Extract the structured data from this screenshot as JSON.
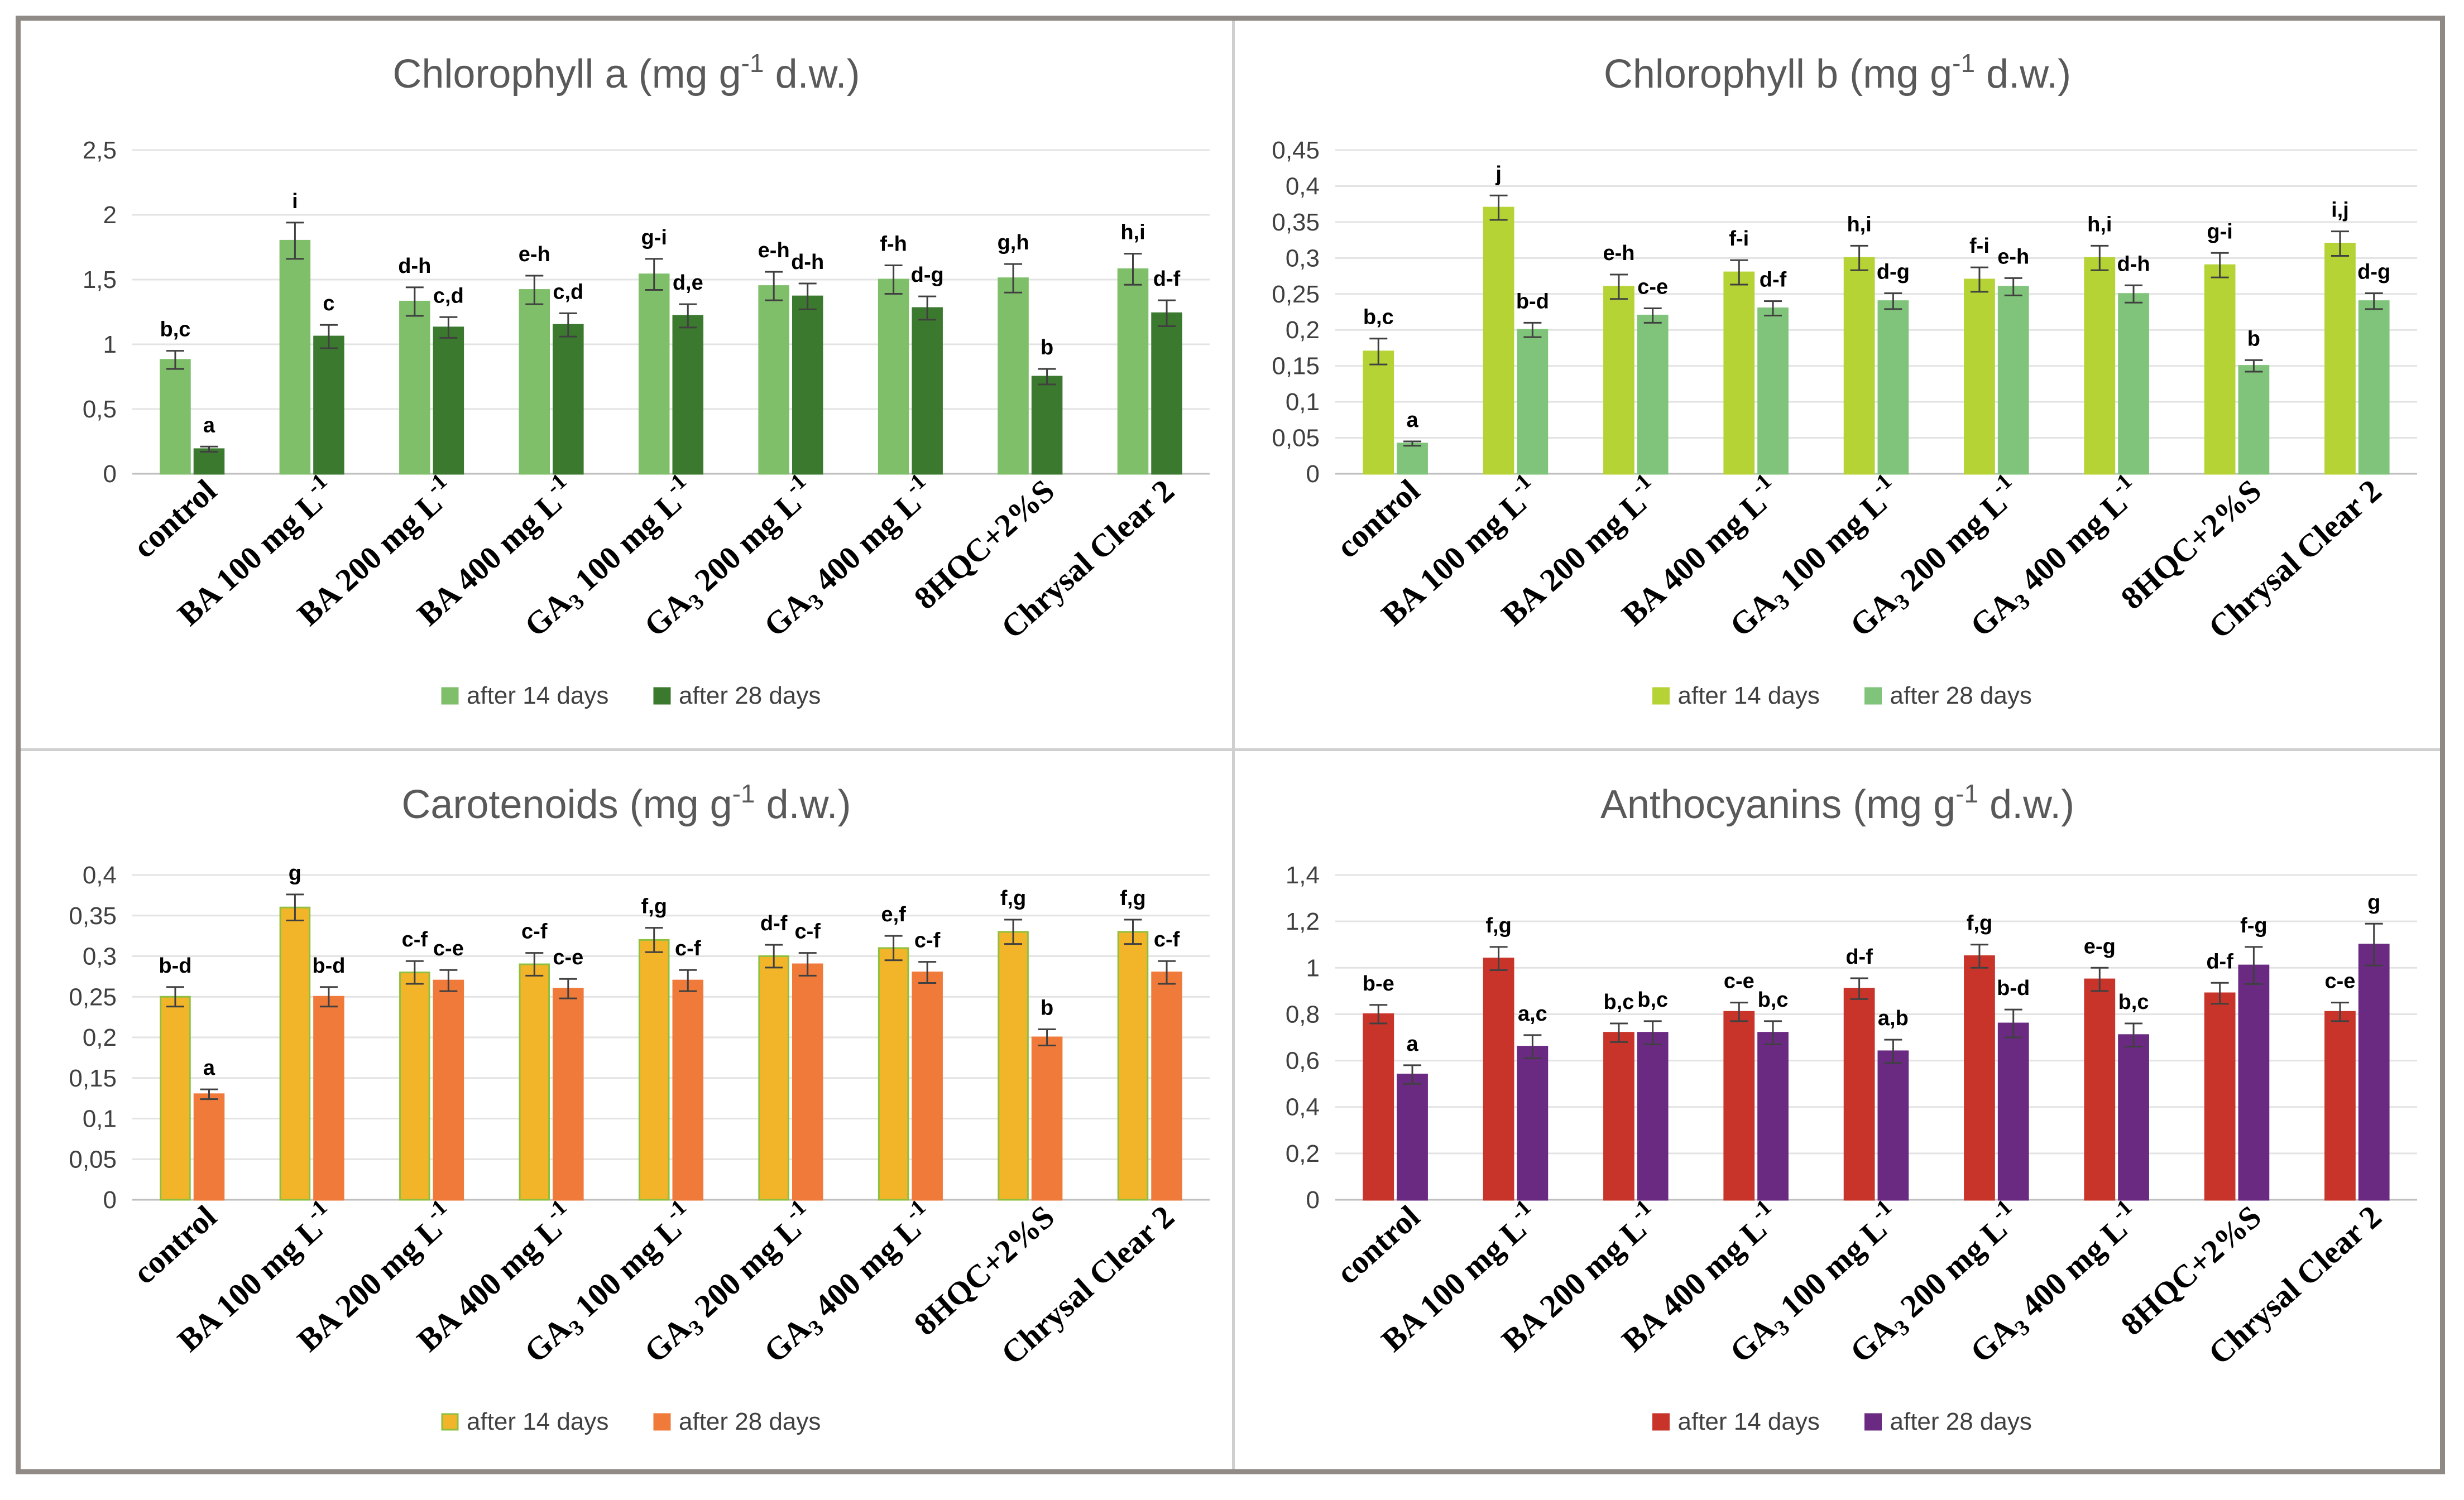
{
  "chart_data": [
    {
      "type": "bar",
      "title_main": "Chlorophyll a (mg g",
      "title_sup": "-1",
      "title_end": " d.w.)",
      "ylim": [
        0,
        2.5
      ],
      "ytick_labels": [
        "0",
        "0,5",
        "1",
        "1,5",
        "2",
        "2,5"
      ],
      "categories": [
        {
          "main": "control",
          "sub": "",
          "sup": "",
          "rest": ""
        },
        {
          "main": "BA 100 mg L",
          "sub": "",
          "sup": "-1",
          "rest": ""
        },
        {
          "main": "BA 200 mg L",
          "sub": "",
          "sup": "-1",
          "rest": ""
        },
        {
          "main": "BA 400 mg L",
          "sub": "",
          "sup": "-1",
          "rest": ""
        },
        {
          "main": "GA",
          "sub": "3",
          "sup": "",
          "rest": " 100 mg L",
          "sup2": "-1"
        },
        {
          "main": "GA",
          "sub": "3",
          "sup": "",
          "rest": " 200 mg L",
          "sup2": "-1"
        },
        {
          "main": "GA",
          "sub": "3",
          "sup": "",
          "rest": " 400 mg L",
          "sup2": "-1"
        },
        {
          "main": "8HQC+2%S",
          "sub": "",
          "sup": "",
          "rest": ""
        },
        {
          "main": "Chrysal Clear 2",
          "sub": "",
          "sup": "",
          "rest": ""
        }
      ],
      "series": [
        {
          "name": "after 14 days",
          "color": "#7fbf6a",
          "edge": "#7fbf6a",
          "values": [
            0.88,
            1.8,
            1.33,
            1.42,
            1.54,
            1.45,
            1.5,
            1.51,
            1.58
          ],
          "errors": [
            0.07,
            0.14,
            0.11,
            0.11,
            0.12,
            0.11,
            0.11,
            0.11,
            0.12
          ],
          "labels": [
            "b,c",
            "i",
            "d-h",
            "e-h",
            "g-i",
            "e-h",
            "f-h",
            "g,h",
            "h,i"
          ]
        },
        {
          "name": "after 28 days",
          "color": "#3b7a2e",
          "edge": "#3b7a2e",
          "values": [
            0.19,
            1.06,
            1.13,
            1.15,
            1.22,
            1.37,
            1.28,
            0.75,
            1.24
          ],
          "errors": [
            0.02,
            0.09,
            0.08,
            0.09,
            0.09,
            0.1,
            0.09,
            0.06,
            0.1
          ],
          "labels": [
            "a",
            "c",
            "c,d",
            "c,d",
            "d,e",
            "d-h",
            "d-g",
            "b",
            "d-f"
          ]
        }
      ]
    },
    {
      "type": "bar",
      "title_main": "Chlorophyll b (mg g",
      "title_sup": "-1",
      "title_end": " d.w.)",
      "ylim": [
        0,
        0.45
      ],
      "ytick_labels": [
        "0",
        "0,05",
        "0,1",
        "0,15",
        "0,2",
        "0,25",
        "0,3",
        "0,35",
        "0,4",
        "0,45"
      ],
      "categories": [
        {
          "main": "control",
          "sub": "",
          "sup": "",
          "rest": ""
        },
        {
          "main": "BA 100 mg L",
          "sub": "",
          "sup": "-1",
          "rest": ""
        },
        {
          "main": "BA 200 mg L",
          "sub": "",
          "sup": "-1",
          "rest": ""
        },
        {
          "main": "BA 400 mg L",
          "sub": "",
          "sup": "-1",
          "rest": ""
        },
        {
          "main": "GA",
          "sub": "3",
          "sup": "",
          "rest": " 100 mg L",
          "sup2": "-1"
        },
        {
          "main": "GA",
          "sub": "3",
          "sup": "",
          "rest": " 200 mg L",
          "sup2": "-1"
        },
        {
          "main": "GA",
          "sub": "3",
          "sup": "",
          "rest": " 400 mg L",
          "sup2": "-1"
        },
        {
          "main": "8HQC+2%S",
          "sub": "",
          "sup": "",
          "rest": ""
        },
        {
          "main": "Chrysal Clear 2",
          "sub": "",
          "sup": "",
          "rest": ""
        }
      ],
      "series": [
        {
          "name": "after 14 days",
          "color": "#b5d334",
          "edge": "#b5d334",
          "values": [
            0.17,
            0.37,
            0.26,
            0.28,
            0.3,
            0.27,
            0.3,
            0.29,
            0.32
          ],
          "errors": [
            0.018,
            0.017,
            0.017,
            0.017,
            0.017,
            0.017,
            0.017,
            0.017,
            0.017
          ],
          "labels": [
            "b,c",
            "j",
            "e-h",
            "f-i",
            "h,i",
            "f-i",
            "h,i",
            "g-i",
            "i,j"
          ]
        },
        {
          "name": "after 28 days",
          "color": "#7fc47a",
          "edge": "#7fc47a",
          "values": [
            0.042,
            0.2,
            0.22,
            0.23,
            0.24,
            0.26,
            0.25,
            0.15,
            0.24
          ],
          "errors": [
            0.003,
            0.01,
            0.01,
            0.01,
            0.011,
            0.012,
            0.012,
            0.008,
            0.011
          ],
          "labels": [
            "a",
            "b-d",
            "c-e",
            "d-f",
            "d-g",
            "e-h",
            "d-h",
            "b",
            "d-g"
          ]
        }
      ]
    },
    {
      "type": "bar",
      "title_main": "Carotenoids  (mg g",
      "title_sup": "-1",
      "title_end": " d.w.)",
      "ylim": [
        0,
        0.4
      ],
      "ytick_labels": [
        "0",
        "0,05",
        "0,1",
        "0,15",
        "0,2",
        "0,25",
        "0,3",
        "0,35",
        "0,4"
      ],
      "categories": [
        {
          "main": "control",
          "sub": "",
          "sup": "",
          "rest": ""
        },
        {
          "main": "BA 100 mg L",
          "sub": "",
          "sup": "-1",
          "rest": ""
        },
        {
          "main": "BA 200 mg L",
          "sub": "",
          "sup": "-1",
          "rest": ""
        },
        {
          "main": "BA 400 mg L",
          "sub": "",
          "sup": "-1",
          "rest": ""
        },
        {
          "main": "GA",
          "sub": "3",
          "sup": "",
          "rest": " 100 mg L",
          "sup2": "-1"
        },
        {
          "main": "GA",
          "sub": "3",
          "sup": "",
          "rest": " 200 mg L",
          "sup2": "-1"
        },
        {
          "main": "GA",
          "sub": "3",
          "sup": "",
          "rest": " 400 mg L",
          "sup2": "-1"
        },
        {
          "main": "8HQC+2%S",
          "sub": "",
          "sup": "",
          "rest": ""
        },
        {
          "main": "Chrysal Clear 2",
          "sub": "",
          "sup": "",
          "rest": ""
        }
      ],
      "series": [
        {
          "name": "after 14 days",
          "color": "#f2b52a",
          "edge": "#8fbf3f",
          "values": [
            0.25,
            0.36,
            0.28,
            0.29,
            0.32,
            0.3,
            0.31,
            0.33,
            0.33
          ],
          "errors": [
            0.012,
            0.016,
            0.014,
            0.014,
            0.015,
            0.014,
            0.015,
            0.015,
            0.015
          ],
          "labels": [
            "b-d",
            "g",
            "c-f",
            "c-f",
            "f,g",
            "d-f",
            "e,f",
            "f,g",
            "f,g"
          ]
        },
        {
          "name": "after 28 days",
          "color": "#ef7a3a",
          "edge": "#ef7a3a",
          "values": [
            0.13,
            0.25,
            0.27,
            0.26,
            0.27,
            0.29,
            0.28,
            0.2,
            0.28
          ],
          "errors": [
            0.006,
            0.012,
            0.013,
            0.012,
            0.013,
            0.014,
            0.013,
            0.01,
            0.014
          ],
          "labels": [
            "a",
            "b-d",
            "c-e",
            "c-e",
            "c-f",
            "c-f",
            "c-f",
            "b",
            "c-f"
          ]
        }
      ]
    },
    {
      "type": "bar",
      "title_main": "Anthocyanins (mg g",
      "title_sup": "-1",
      "title_end": " d.w.)",
      "ylim": [
        0,
        1.4
      ],
      "ytick_labels": [
        "0",
        "0,2",
        "0,4",
        "0,6",
        "0,8",
        "1",
        "1,2",
        "1,4"
      ],
      "categories": [
        {
          "main": "control",
          "sub": "",
          "sup": "",
          "rest": ""
        },
        {
          "main": "BA 100 mg L",
          "sub": "",
          "sup": "-1",
          "rest": ""
        },
        {
          "main": "BA 200 mg L",
          "sub": "",
          "sup": "-1",
          "rest": ""
        },
        {
          "main": "BA 400 mg L",
          "sub": "",
          "sup": "-1",
          "rest": ""
        },
        {
          "main": "GA",
          "sub": "3",
          "sup": "",
          "rest": " 100 mg L",
          "sup2": "-1"
        },
        {
          "main": "GA",
          "sub": "3",
          "sup": "",
          "rest": " 200 mg L",
          "sup2": "-1"
        },
        {
          "main": "GA",
          "sub": "3",
          "sup": "",
          "rest": " 400 mg L",
          "sup2": "-1"
        },
        {
          "main": "8HQC+2%S",
          "sub": "",
          "sup": "",
          "rest": ""
        },
        {
          "main": "Chrysal Clear 2",
          "sub": "",
          "sup": "",
          "rest": ""
        }
      ],
      "series": [
        {
          "name": "after 14 days",
          "color": "#c9342a",
          "edge": "#c9342a",
          "values": [
            0.8,
            1.04,
            0.72,
            0.81,
            0.91,
            1.05,
            0.95,
            0.89,
            0.81
          ],
          "errors": [
            0.04,
            0.05,
            0.04,
            0.04,
            0.045,
            0.05,
            0.05,
            0.045,
            0.04
          ],
          "labels": [
            "b-e",
            "f,g",
            "b,c",
            "c-e",
            "d-f",
            "f,g",
            "e-g",
            "d-f",
            "c-e"
          ]
        },
        {
          "name": "after 28 days",
          "color": "#6a2a82",
          "edge": "#6a2a82",
          "values": [
            0.54,
            0.66,
            0.72,
            0.72,
            0.64,
            0.76,
            0.71,
            1.01,
            1.1
          ],
          "errors": [
            0.04,
            0.05,
            0.05,
            0.05,
            0.05,
            0.06,
            0.05,
            0.08,
            0.09
          ],
          "labels": [
            "a",
            "a,c",
            "b,c",
            "b,c",
            "a,b",
            "b-d",
            "b,c",
            "f-g",
            "g"
          ]
        }
      ]
    }
  ]
}
